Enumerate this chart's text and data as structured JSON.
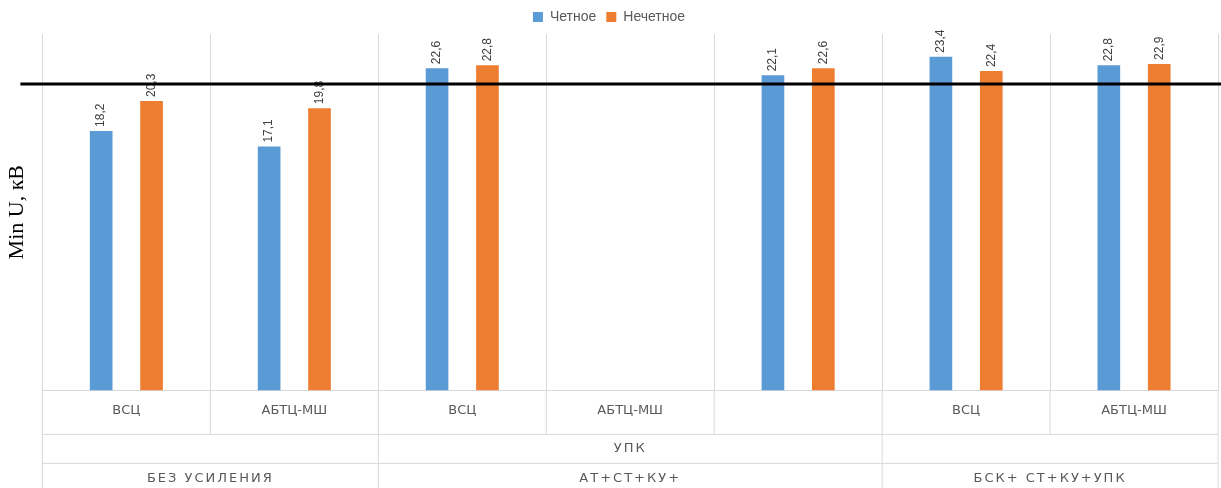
{
  "chart_data": {
    "type": "bar",
    "ylabel": "Min U, кВ",
    "categories": [
      "ВСЦ",
      "АБТЦ-МШ",
      "ВСЦ",
      "АБТЦ-МШ",
      null,
      "ВСЦ",
      "АБТЦ-МШ"
    ],
    "series": [
      {
        "name": "Четное",
        "color": "#5b9bd5",
        "values": [
          18.2,
          17.1,
          22.6,
          null,
          22.1,
          23.4,
          22.8
        ],
        "value_labels": [
          "18,2",
          "17,1",
          "22,6",
          null,
          "22,1",
          "23,4",
          "22,8"
        ]
      },
      {
        "name": "Нечетное",
        "color": "#ed7d31",
        "values": [
          20.3,
          19.8,
          22.8,
          null,
          22.6,
          22.4,
          22.9
        ],
        "value_labels": [
          "20,3",
          "19,8",
          "22,8",
          null,
          "22,6",
          "22,4",
          "22,9"
        ]
      }
    ],
    "annotations": [
      "УПК",
      "БЕЗ УСИЛЕНИЯ",
      "АТ+СТ+КУ+",
      "БСК+ СТ+КУ+УПК"
    ],
    "ref_lines": [
      {
        "axis": "y",
        "value": 21.5,
        "color": "#000000"
      }
    ],
    "legend": "top",
    "grid": "x"
  }
}
